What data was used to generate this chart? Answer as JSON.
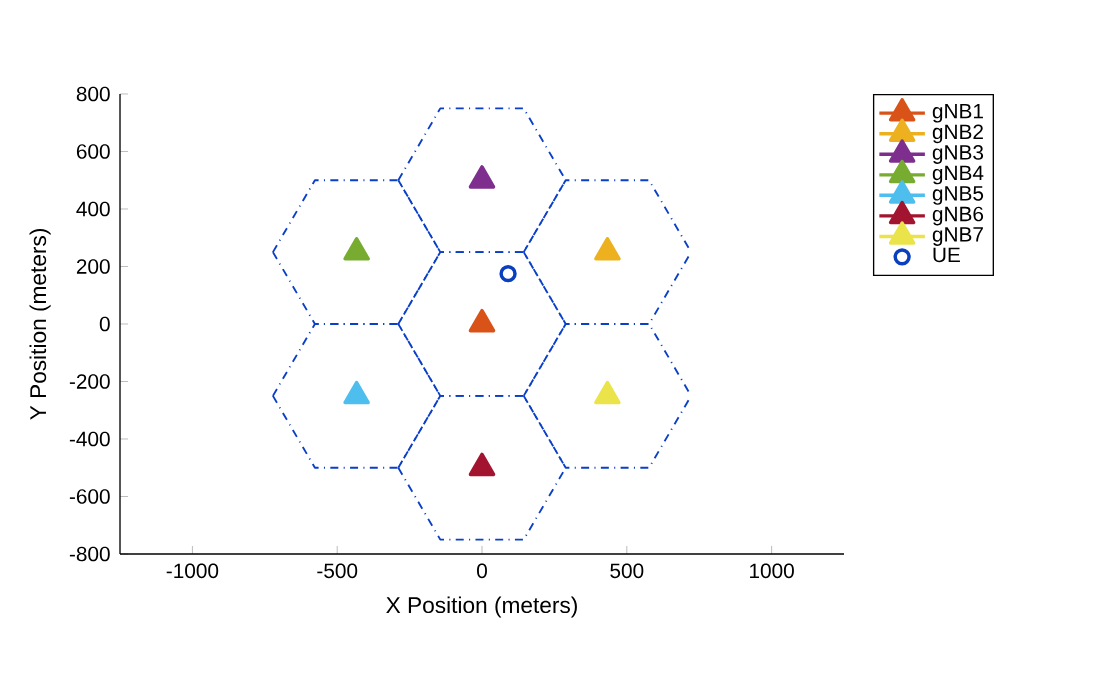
{
  "chart_data": {
    "type": "line",
    "xlabel": "X Position (meters)",
    "ylabel": "Y Position (meters)",
    "xlim": [
      -1250,
      1250
    ],
    "xticks": [
      -1000,
      -500,
      0,
      500,
      1000
    ],
    "ylim": [
      -800,
      800
    ],
    "yticks": [
      -800,
      -600,
      -400,
      -200,
      0,
      200,
      400,
      600,
      800
    ],
    "grid": false,
    "legend": "top right",
    "series": [
      {
        "name": "gNB1",
        "color": "#d95319",
        "marker": "triangle",
        "x": [
          0
        ],
        "values": [
          0
        ]
      },
      {
        "name": "gNB2",
        "color": "#edb120",
        "marker": "triangle",
        "x": [
          433
        ],
        "values": [
          250
        ]
      },
      {
        "name": "gNB3",
        "color": "#7e2f8e",
        "marker": "triangle",
        "x": [
          0
        ],
        "values": [
          500
        ]
      },
      {
        "name": "gNB4",
        "color": "#77ac30",
        "marker": "triangle",
        "x": [
          -433
        ],
        "values": [
          250
        ]
      },
      {
        "name": "gNB5",
        "color": "#4dbeee",
        "marker": "triangle",
        "x": [
          -433
        ],
        "values": [
          -250
        ]
      },
      {
        "name": "gNB6",
        "color": "#a2142f",
        "marker": "triangle",
        "x": [
          0
        ],
        "values": [
          -500
        ]
      },
      {
        "name": "gNB7",
        "color": "#ebe34a",
        "marker": "triangle",
        "x": [
          433
        ],
        "values": [
          -250
        ]
      },
      {
        "name": "UE",
        "type": "scatter",
        "color": "#0a3fc0",
        "marker": "circle",
        "x": [
          90
        ],
        "values": [
          175
        ]
      },
      {
        "color": "#0a3fc8",
        "line_style": "dashed",
        "x": [
          -289,
          -144,
          144,
          289
        ],
        "values": [
          0,
          250,
          250,
          0
        ]
      },
      {
        "color": "#0a3fc8",
        "line_style": "dashed",
        "x": [
          -289,
          -144,
          144,
          289
        ],
        "values": [
          0,
          -250,
          -250,
          0
        ]
      },
      {
        "color": "#0a3fc8",
        "line_style": "dashed",
        "x": [
          144,
          289,
          577,
          722
        ],
        "values": [
          250,
          500,
          500,
          250
        ]
      },
      {
        "color": "#0a3fc8",
        "line_style": "dashed",
        "x": [
          144,
          289,
          577,
          722
        ],
        "values": [
          250,
          0,
          0,
          250
        ]
      },
      {
        "color": "#0a3fc8",
        "line_style": "dashed",
        "x": [
          -289,
          -144,
          144,
          289
        ],
        "values": [
          500,
          750,
          750,
          500
        ]
      },
      {
        "color": "#0a3fc8",
        "line_style": "dashed",
        "x": [
          -289,
          -144,
          144,
          289
        ],
        "values": [
          500,
          250,
          250,
          500
        ]
      },
      {
        "color": "#0a3fc8",
        "line_style": "dashed",
        "x": [
          -722,
          -577,
          -289,
          -144
        ],
        "values": [
          250,
          500,
          500,
          250
        ]
      },
      {
        "color": "#0a3fc8",
        "line_style": "dashed",
        "x": [
          -722,
          -577,
          -289,
          -144
        ],
        "values": [
          250,
          0,
          0,
          250
        ]
      },
      {
        "color": "#0a3fc8",
        "line_style": "dashed",
        "x": [
          -722,
          -577,
          -289,
          -144
        ],
        "values": [
          -250,
          0,
          0,
          -250
        ]
      },
      {
        "color": "#0a3fc8",
        "line_style": "dashed",
        "x": [
          -722,
          -577,
          -289,
          -144
        ],
        "values": [
          -250,
          -500,
          -500,
          -250
        ]
      },
      {
        "color": "#0a3fc8",
        "line_style": "dashed",
        "x": [
          -289,
          -144,
          144,
          289
        ],
        "values": [
          -500,
          -250,
          -250,
          -500
        ]
      },
      {
        "color": "#0a3fc8",
        "line_style": "dashed",
        "x": [
          -289,
          -144,
          144,
          289
        ],
        "values": [
          -500,
          -750,
          -750,
          -500
        ]
      },
      {
        "color": "#0a3fc8",
        "line_style": "dashed",
        "x": [
          144,
          289,
          577,
          722
        ],
        "values": [
          -250,
          0,
          0,
          -250
        ]
      },
      {
        "color": "#0a3fc8",
        "line_style": "dashed",
        "x": [
          144,
          289,
          577,
          722
        ],
        "values": [
          -250,
          -500,
          -500,
          -250
        ]
      }
    ]
  }
}
